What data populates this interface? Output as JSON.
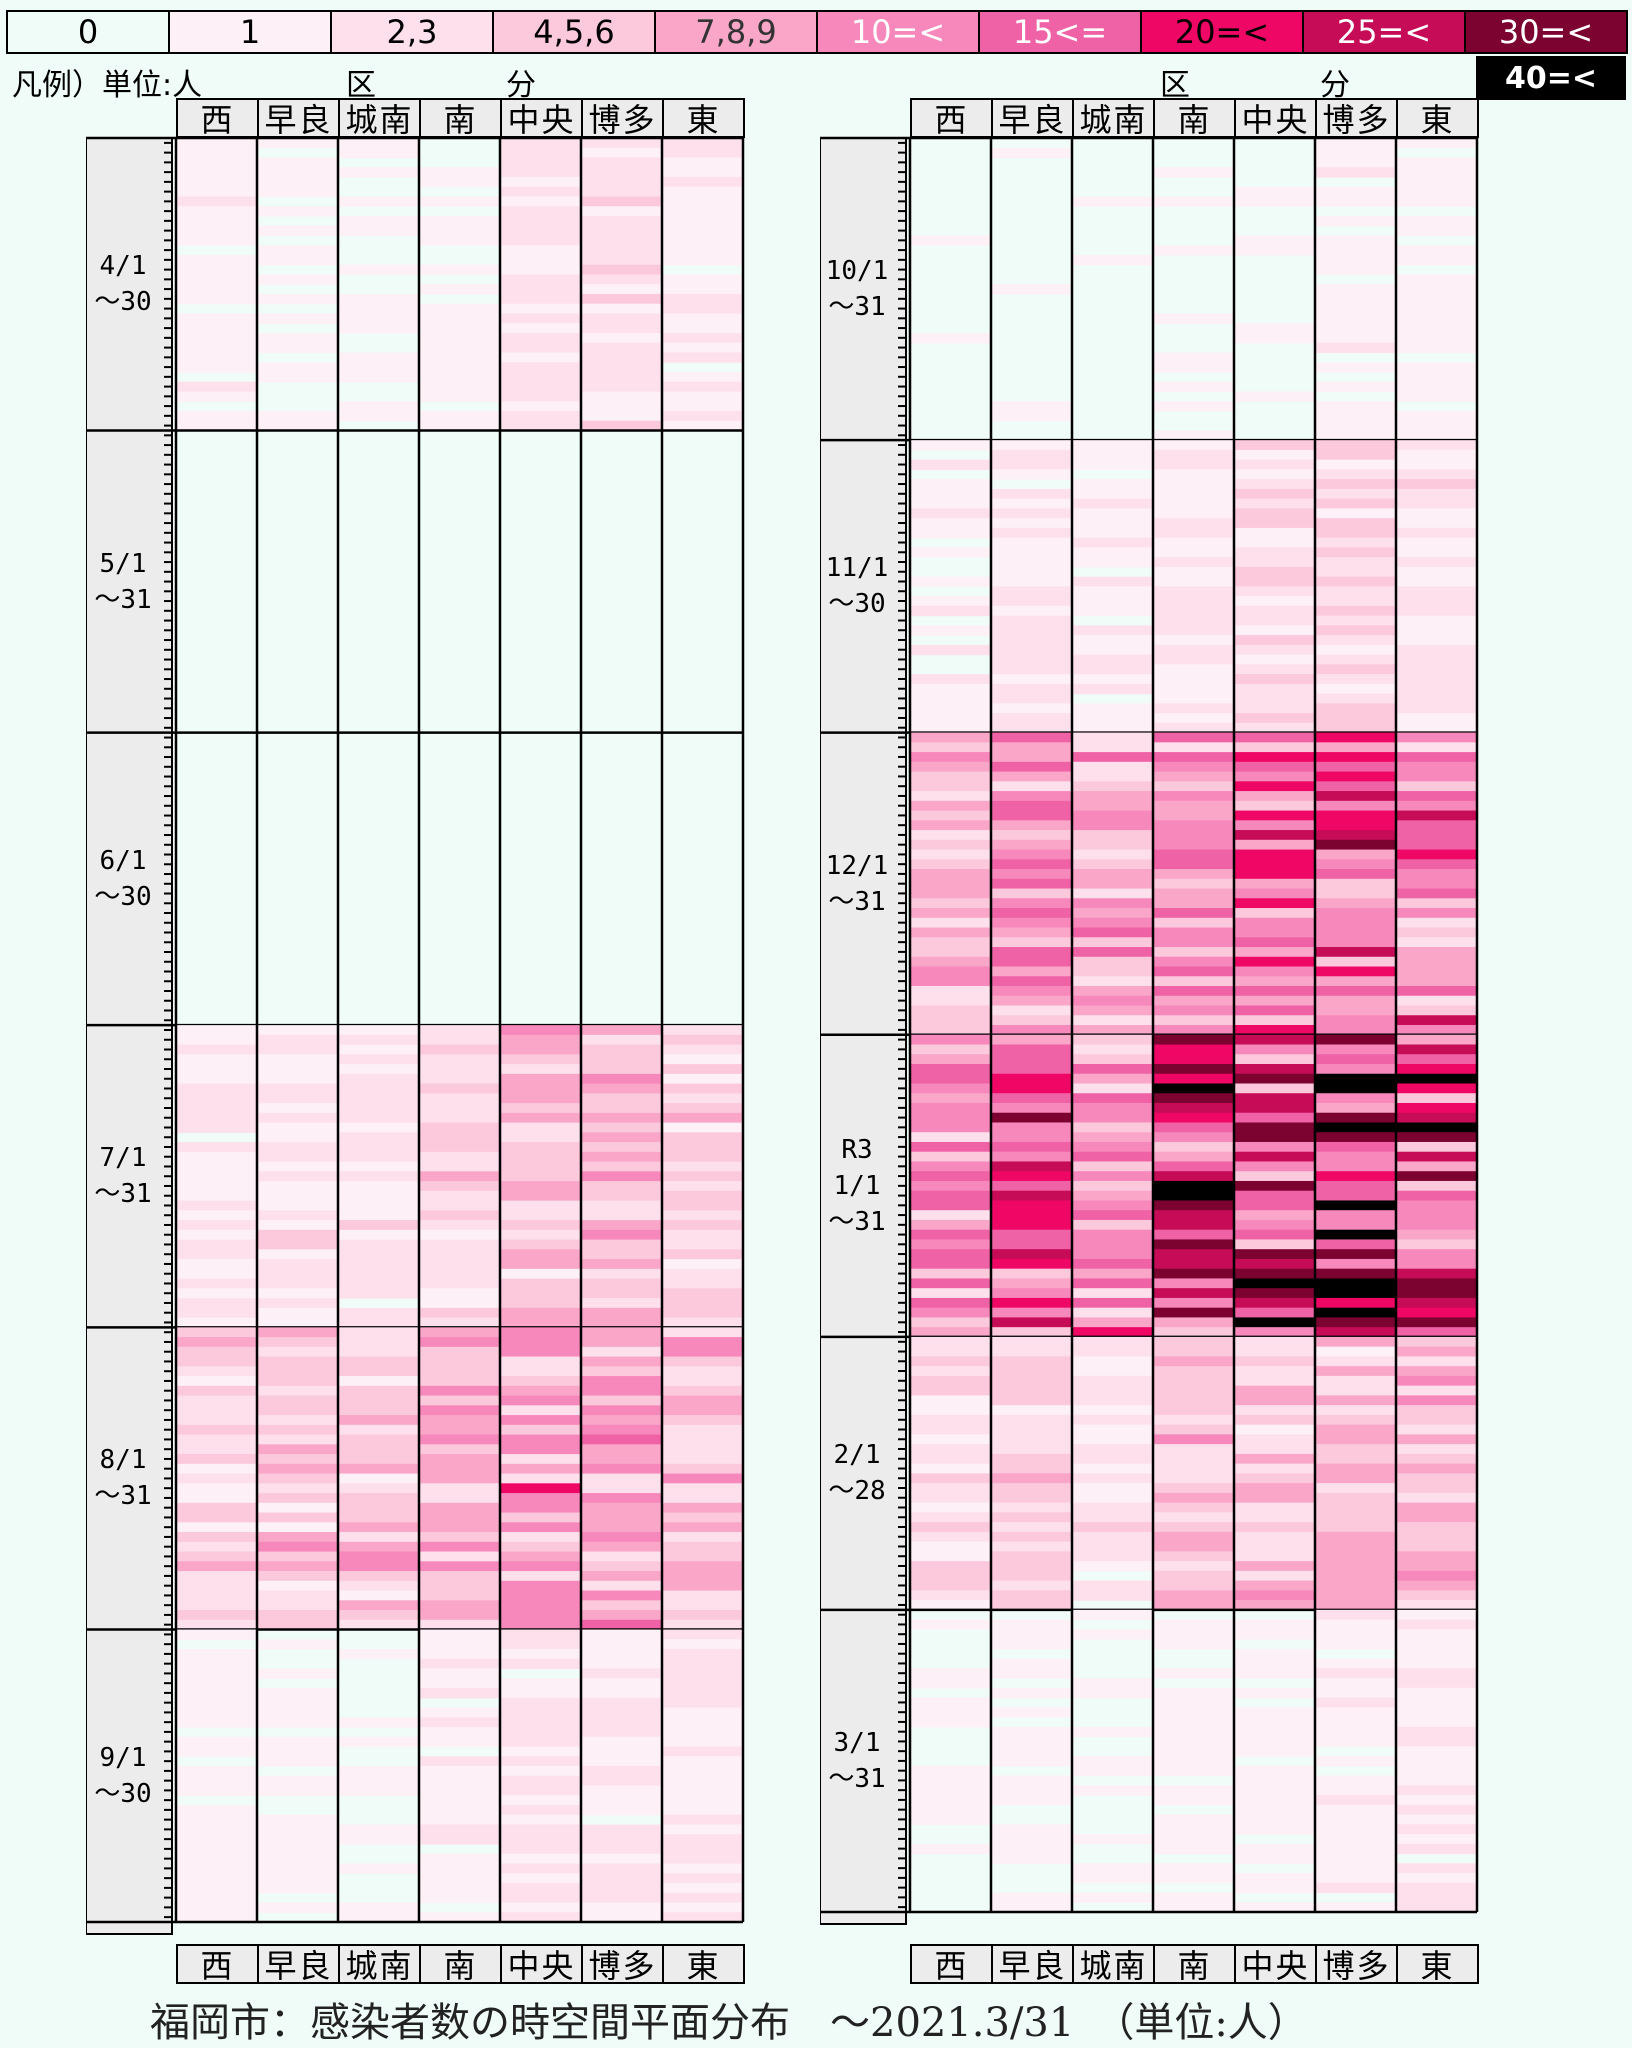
{
  "legend": {
    "unit_label": "凡例）単位:人",
    "items": [
      {
        "label": "0",
        "bg": "#f0fcf8",
        "fg": "#000000"
      },
      {
        "label": "1",
        "bg": "#fdf0f6",
        "fg": "#000000"
      },
      {
        "label": "2,3",
        "bg": "#fde0ec",
        "fg": "#000000"
      },
      {
        "label": "4,5,6",
        "bg": "#fcc8dc",
        "fg": "#000000"
      },
      {
        "label": "7,8,9",
        "bg": "#f9a6c8",
        "fg": "#333333"
      },
      {
        "label": "10=<",
        "bg": "#f788bb",
        "fg": "#ffffff"
      },
      {
        "label": "15<=",
        "bg": "#f062a6",
        "fg": "#ffffff"
      },
      {
        "label": "20=<",
        "bg": "#ef0766",
        "fg": "#000000"
      },
      {
        "label": "25=<",
        "bg": "#c60b57",
        "fg": "#ffffff"
      },
      {
        "label": "30=<",
        "bg": "#7c0330",
        "fg": "#ffffff"
      }
    ],
    "extra": {
      "label": "40=<",
      "bg": "#000000",
      "fg": "#ffffff"
    }
  },
  "kubun_chars": [
    "区",
    "分"
  ],
  "districts": [
    "西",
    "早良",
    "城南",
    "南",
    "中央",
    "博多",
    "東"
  ],
  "chart_data": {
    "type": "heatmap",
    "title": "福岡市：感染者数の時空間平面分布　～2021.3/31　（単位:人）",
    "x_categories": [
      "西",
      "早良",
      "城南",
      "南",
      "中央",
      "博多",
      "東"
    ],
    "value_bins": [
      "0",
      "1",
      "2,3",
      "4,5,6",
      "7,8,9",
      "10=<",
      "15<=",
      "20=<",
      "25=<",
      "30=<",
      "40=<"
    ],
    "panels": [
      {
        "months": [
          {
            "label": "4/1\n～30",
            "days": 30,
            "profile": [
              0.9,
              0.6,
              0.4,
              0.5,
              1.8,
              1.9,
              1.0
            ]
          },
          {
            "label": "5/1\n～31",
            "days": 31,
            "profile": [
              0.02,
              0.05,
              0.03,
              0.03,
              0.03,
              0.03,
              0.03
            ]
          },
          {
            "label": "6/1\n～30",
            "days": 30,
            "profile": [
              0.05,
              0.1,
              0.03,
              0.1,
              0.1,
              0.15,
              0.05
            ]
          },
          {
            "label": "7/1\n～31",
            "days": 31,
            "profile": [
              1.2,
              1.6,
              1.6,
              2.6,
              4.2,
              4.6,
              3.2
            ]
          },
          {
            "label": "8/1\n～31",
            "days": 31,
            "profile": [
              3.0,
              4.0,
              4.5,
              5.5,
              7.5,
              8.2,
              6.0
            ]
          },
          {
            "label": "9/1\n～30",
            "days": 30,
            "profile": [
              0.6,
              0.5,
              0.4,
              0.9,
              1.6,
              1.3,
              1.4
            ]
          }
        ]
      },
      {
        "months": [
          {
            "label": "10/1\n～31",
            "days": 31,
            "profile": [
              0.2,
              0.3,
              0.2,
              0.4,
              0.3,
              0.8,
              0.6
            ]
          },
          {
            "label": "11/1\n～30",
            "days": 30,
            "profile": [
              0.9,
              1.5,
              1.0,
              1.8,
              2.6,
              3.0,
              1.5
            ]
          },
          {
            "label": "12/1\n～31",
            "days": 31,
            "profile": [
              6.0,
              9.5,
              6.5,
              10.5,
              12.5,
              14.5,
              10.5
            ]
          },
          {
            "label": "R3\n1/1\n～31",
            "days": 31,
            "profile": [
              10.0,
              15.5,
              9.0,
              18.0,
              21.0,
              26.0,
              17.5
            ]
          },
          {
            "label": "2/1\n～28",
            "days": 28,
            "profile": [
              2.5,
              3.0,
              1.5,
              4.0,
              4.5,
              5.0,
              5.5
            ]
          },
          {
            "label": "3/1\n～31",
            "days": 31,
            "profile": [
              0.4,
              0.6,
              0.4,
              0.7,
              0.6,
              0.9,
              1.3
            ]
          }
        ]
      }
    ]
  },
  "footer": {
    "title": "福岡市：感染者数の時空間平面分布　～2021.3/31　（単位:人）"
  }
}
